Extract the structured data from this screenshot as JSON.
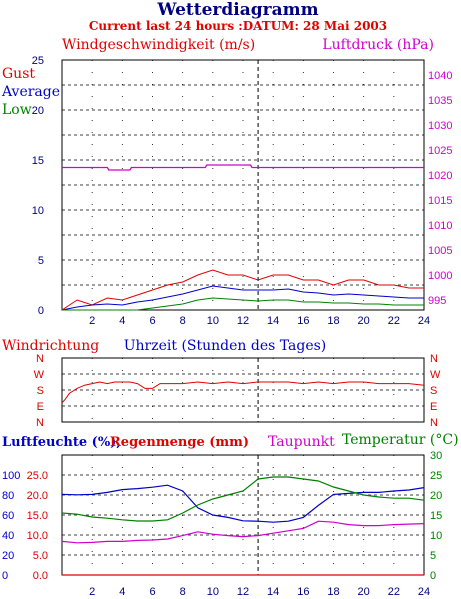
{
  "title": "Wetterdiagramm",
  "subtitle": "Current last 24 hours :DATUM: 28 Mai 2003",
  "colors": {
    "red": "#e00000",
    "blue": "#0000cc",
    "green": "#008000",
    "magenta": "#d000d0",
    "grid": "#000000"
  },
  "chart_data": [
    {
      "type": "line",
      "panel": "wind",
      "title_left": "Windgeschwindigkeit (m/s)",
      "title_right": "Luftdruck (hPa)",
      "legend": [
        "Gust",
        "Average",
        "Low"
      ],
      "x_label": "Uhrzeit (Stunden des Tages)",
      "x_ticks": [
        "2",
        "4",
        "6",
        "8",
        "10",
        "12",
        "14",
        "16",
        "18",
        "20",
        "22",
        "24"
      ],
      "xlim": [
        0,
        24
      ],
      "ylim_left": [
        0,
        25
      ],
      "y_ticks_left": [
        "0",
        "5",
        "10",
        "15",
        "20",
        "25"
      ],
      "ylim_right": [
        993,
        1043
      ],
      "y_ticks_right": [
        "995",
        "1000",
        "1005",
        "1010",
        "1015",
        "1020",
        "1025",
        "1030",
        "1035",
        "1040"
      ],
      "series": [
        {
          "name": "Gust",
          "axis": "left",
          "color": "red",
          "x": [
            0,
            1,
            2,
            3,
            4,
            5,
            6,
            7,
            8,
            9,
            10,
            11,
            12,
            13,
            14,
            15,
            16,
            17,
            18,
            19,
            20,
            21,
            22,
            23,
            24
          ],
          "values": [
            0,
            1,
            0.5,
            1.2,
            1,
            1.5,
            2,
            2.5,
            2.8,
            3.5,
            4,
            3.5,
            3.5,
            3,
            3.5,
            3.5,
            3,
            3,
            2.5,
            3,
            3,
            2.5,
            2.5,
            2.2,
            2.2
          ]
        },
        {
          "name": "Average",
          "axis": "left",
          "color": "blue",
          "x": [
            0,
            1,
            2,
            3,
            4,
            5,
            6,
            7,
            8,
            9,
            10,
            11,
            12,
            13,
            14,
            15,
            16,
            17,
            18,
            19,
            20,
            21,
            22,
            23,
            24
          ],
          "values": [
            0,
            0.3,
            0.5,
            0.6,
            0.5,
            0.8,
            1,
            1.3,
            1.6,
            2,
            2.4,
            2.2,
            2,
            2,
            2,
            2.1,
            1.8,
            1.7,
            1.5,
            1.6,
            1.5,
            1.4,
            1.3,
            1.2,
            1.2
          ]
        },
        {
          "name": "Low",
          "axis": "left",
          "color": "green",
          "x": [
            0,
            1,
            2,
            3,
            4,
            5,
            6,
            7,
            8,
            9,
            10,
            11,
            12,
            13,
            14,
            15,
            16,
            17,
            18,
            19,
            20,
            21,
            22,
            23,
            24
          ],
          "values": [
            0,
            0,
            0,
            0,
            0,
            0,
            0.2,
            0.4,
            0.6,
            1,
            1.2,
            1.1,
            1,
            0.9,
            1,
            1,
            0.8,
            0.8,
            0.7,
            0.7,
            0.6,
            0.6,
            0.5,
            0.5,
            0.5
          ]
        },
        {
          "name": "Luftdruck",
          "axis": "right",
          "color": "magenta",
          "x": [
            0,
            3,
            3.1,
            4.5,
            4.6,
            9.5,
            9.6,
            12.5,
            12.6,
            15,
            24
          ],
          "values": [
            1021.5,
            1021.5,
            1021,
            1021,
            1021.5,
            1021.5,
            1022,
            1022,
            1021.5,
            1021.5,
            1021.5
          ]
        }
      ]
    },
    {
      "type": "line",
      "panel": "wind_direction",
      "title": "Windrichtung",
      "y_categories": [
        "N",
        "W",
        "S",
        "E",
        "N"
      ],
      "xlim": [
        0,
        24
      ],
      "series": [
        {
          "name": "Windrichtung",
          "color": "red",
          "x": [
            0,
            0.2,
            0.5,
            1,
            1.5,
            2,
            2.5,
            3,
            3.5,
            4,
            4.5,
            5,
            5.5,
            6,
            6.5,
            7,
            8,
            9,
            10,
            11,
            12,
            13,
            14,
            15,
            16,
            17,
            18,
            19,
            20,
            21,
            22,
            23,
            24
          ],
          "values": [
            2.8,
            2.6,
            2.2,
            1.9,
            1.7,
            1.6,
            1.5,
            1.6,
            1.5,
            1.5,
            1.5,
            1.6,
            1.9,
            1.9,
            1.6,
            1.6,
            1.6,
            1.5,
            1.6,
            1.5,
            1.6,
            1.5,
            1.5,
            1.5,
            1.6,
            1.5,
            1.6,
            1.5,
            1.5,
            1.6,
            1.6,
            1.6,
            1.7
          ]
        }
      ]
    },
    {
      "type": "line",
      "panel": "humidity",
      "title_left": "Luftfeuchte (%),",
      "title_left2": "Regenmenge (mm)",
      "title_mid": "Taupunkt",
      "title_right": "Temperatur (",
      "title_right_unit": "°C)",
      "x_ticks": [
        "2",
        "4",
        "6",
        "8",
        "10",
        "12",
        "14",
        "16",
        "18",
        "20",
        "22",
        "24"
      ],
      "xlim": [
        0,
        24
      ],
      "y_ticks_left_outer": [
        "0",
        "20",
        "40",
        "60",
        "80",
        "100"
      ],
      "y_ticks_left_inner": [
        "0.0",
        "5.0",
        "10.0",
        "15.0",
        "20.0",
        "25.0"
      ],
      "ylim_left": [
        0,
        25
      ],
      "y_ticks_right": [
        "0",
        "5",
        "10",
        "15",
        "20",
        "25",
        "30"
      ],
      "ylim_right": [
        0,
        30
      ],
      "series": [
        {
          "name": "Luftfeuchte",
          "color": "blue",
          "x": [
            0,
            1,
            2,
            3,
            4,
            5,
            6,
            7,
            8,
            9,
            10,
            11,
            12,
            13,
            14,
            15,
            16,
            17,
            18,
            19,
            20,
            21,
            22,
            23,
            24
          ],
          "values": [
            16.8,
            16.7,
            16.8,
            17.2,
            17.8,
            18,
            18.3,
            18.7,
            17.5,
            14,
            12.5,
            12,
            11.3,
            11.2,
            11,
            11.2,
            12,
            14.5,
            16.8,
            17,
            17.2,
            17.2,
            17.5,
            17.7,
            18.2
          ]
        },
        {
          "name": "Regenmenge",
          "color": "red",
          "x": [
            0,
            24
          ],
          "values": [
            0,
            0
          ]
        },
        {
          "name": "Taupunkt",
          "color": "magenta",
          "x": [
            0,
            1,
            2,
            3,
            4,
            5,
            6,
            7,
            8,
            9,
            10,
            11,
            12,
            13,
            14,
            15,
            16,
            17,
            18,
            19,
            20,
            21,
            22,
            23,
            24
          ],
          "values": [
            7,
            6.7,
            6.8,
            7,
            7,
            7.2,
            7.3,
            7.5,
            8.2,
            9,
            8.5,
            8.2,
            8,
            8.2,
            8.7,
            9.2,
            9.7,
            11.2,
            11,
            10.5,
            10.3,
            10.3,
            10.5,
            10.6,
            10.7
          ]
        },
        {
          "name": "Temperatur",
          "color": "green",
          "x": [
            0,
            1,
            2,
            3,
            4,
            5,
            6,
            7,
            8,
            9,
            10,
            11,
            12,
            13,
            14,
            15,
            16,
            17,
            18,
            19,
            20,
            21,
            22,
            23,
            24
          ],
          "values": [
            15.5,
            15.2,
            14.5,
            14.2,
            13.8,
            13.5,
            13.5,
            13.8,
            15.5,
            17.5,
            19,
            20,
            21,
            24,
            24.5,
            24.5,
            24,
            23.5,
            22,
            21,
            20,
            19.5,
            19.2,
            19.2,
            18.7
          ]
        }
      ]
    }
  ]
}
